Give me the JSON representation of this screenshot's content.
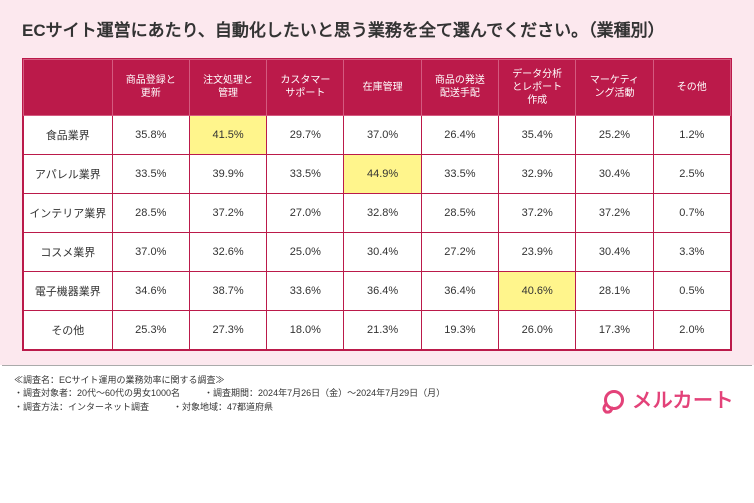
{
  "title": "ECサイト運営にあたり、自動化したいと思う業務を全て選んでください。（業種別）",
  "table": {
    "columns": [
      "商品登録と\n更新",
      "注文処理と\n管理",
      "カスタマー\nサポート",
      "在庫管理",
      "商品の発送\n配送手配",
      "データ分析\nとレポート\n作成",
      "マーケティ\nング活動",
      "その他"
    ],
    "row_labels": [
      "食品業界",
      "アパレル業界",
      "インテリア業界",
      "コスメ業界",
      "電子機器業界",
      "その他"
    ],
    "rows": [
      [
        "35.8%",
        "41.5%",
        "29.7%",
        "37.0%",
        "26.4%",
        "35.4%",
        "25.2%",
        "1.2%"
      ],
      [
        "33.5%",
        "39.9%",
        "33.5%",
        "44.9%",
        "33.5%",
        "32.9%",
        "30.4%",
        "2.5%"
      ],
      [
        "28.5%",
        "37.2%",
        "27.0%",
        "32.8%",
        "28.5%",
        "37.2%",
        "37.2%",
        "0.7%"
      ],
      [
        "37.0%",
        "32.6%",
        "25.0%",
        "30.4%",
        "27.2%",
        "23.9%",
        "30.4%",
        "3.3%"
      ],
      [
        "34.6%",
        "38.7%",
        "33.6%",
        "36.4%",
        "36.4%",
        "40.6%",
        "28.1%",
        "0.5%"
      ],
      [
        "25.3%",
        "27.3%",
        "18.0%",
        "21.3%",
        "19.3%",
        "26.0%",
        "17.3%",
        "2.0%"
      ]
    ],
    "highlights": [
      [
        0,
        1
      ],
      [
        1,
        3
      ],
      [
        4,
        5
      ]
    ],
    "colors": {
      "header_bg": "#bb1a4a",
      "header_text": "#ffffff",
      "header_border": "#d45a7f",
      "cell_bg": "#ffffff",
      "cell_border": "#bb1a4a",
      "highlight_bg": "#fff58c",
      "chart_bg": "#fce8ee",
      "text": "#333333"
    },
    "font_sizes": {
      "title": 17,
      "header": 10,
      "cell": 11,
      "footer": 9
    }
  },
  "footer": {
    "line1": "≪調査名：ECサイト運用の業務効率に関する調査≫",
    "line2a": "・調査対象者：20代〜60代の男女1000名",
    "line2b": "・調査期間：2024年7月26日（金）〜2024年7月29日（月）",
    "line3a": "・調査方法：インターネット調査",
    "line3b": "・対象地域：47都道府県"
  },
  "logo": {
    "text": "メルカート",
    "color": "#e34279"
  }
}
